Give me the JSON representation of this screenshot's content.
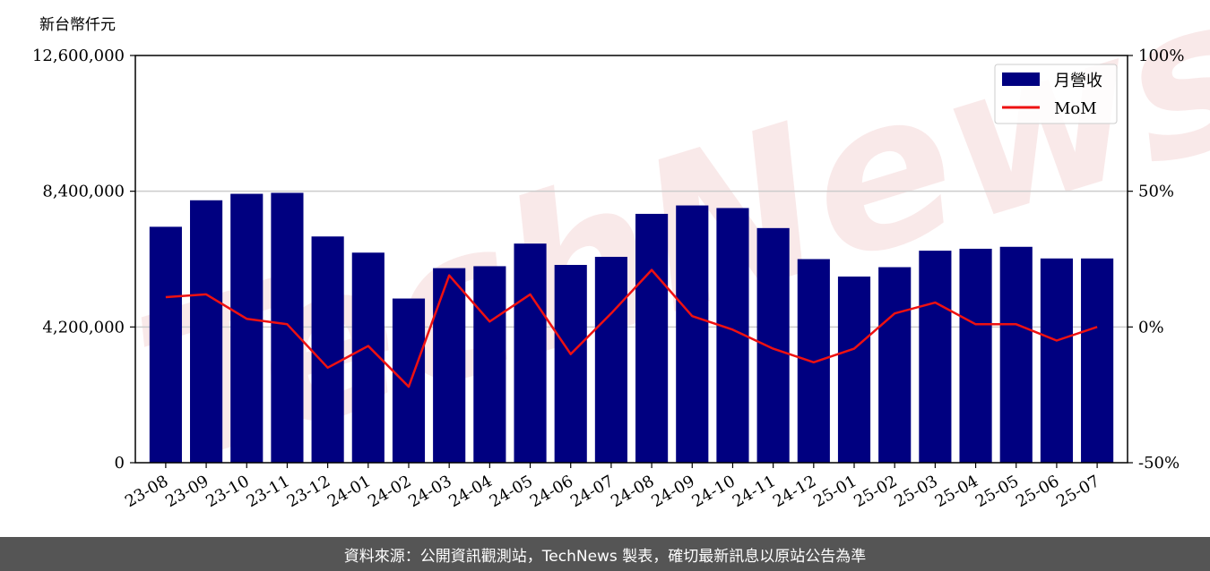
{
  "chart_data": {
    "type": "bar",
    "unit_label": "新台幣仟元",
    "categories": [
      "23-08",
      "23-09",
      "23-10",
      "23-11",
      "23-12",
      "24-01",
      "24-02",
      "24-03",
      "24-04",
      "24-05",
      "24-06",
      "24-07",
      "24-08",
      "24-09",
      "24-10",
      "24-11",
      "24-12",
      "25-01",
      "25-02",
      "25-03",
      "25-04",
      "25-05",
      "25-06",
      "25-07"
    ],
    "series": [
      {
        "name": "月營收",
        "type": "bar",
        "axis": "left",
        "color": "#000080",
        "values": [
          7300000,
          8120000,
          8320000,
          8350000,
          7000000,
          6500000,
          5080000,
          6020000,
          6080000,
          6780000,
          6120000,
          6370000,
          7700000,
          7960000,
          7880000,
          7260000,
          6300000,
          5760000,
          6050000,
          6560000,
          6620000,
          6680000,
          6320000,
          6320000
        ]
      },
      {
        "name": "MoM",
        "type": "line",
        "axis": "right",
        "color": "#ee1111",
        "values": [
          11,
          12,
          3,
          1,
          -15,
          -7,
          -22,
          19,
          2,
          12,
          -10,
          5,
          21,
          4,
          -1,
          -8,
          -13,
          -8,
          5,
          9,
          1,
          1,
          -5,
          0
        ]
      }
    ],
    "y_left": {
      "range": [
        0,
        12600000
      ],
      "ticks": [
        "0",
        "4,200,000",
        "8,400,000",
        "12,600,000"
      ],
      "tick_values": [
        0,
        4200000,
        8400000,
        12600000
      ]
    },
    "y_right": {
      "range": [
        -50,
        100
      ],
      "ticks": [
        "-50%",
        "0%",
        "50%",
        "100%"
      ],
      "tick_values": [
        -50,
        0,
        50,
        100
      ]
    },
    "grid": "horizontal",
    "legend_position": "top-right"
  },
  "watermark": "TechNews",
  "footer": {
    "text": "資料來源：公開資訊觀測站，TechNews 製表，確切最新訊息以原站公告為準"
  }
}
